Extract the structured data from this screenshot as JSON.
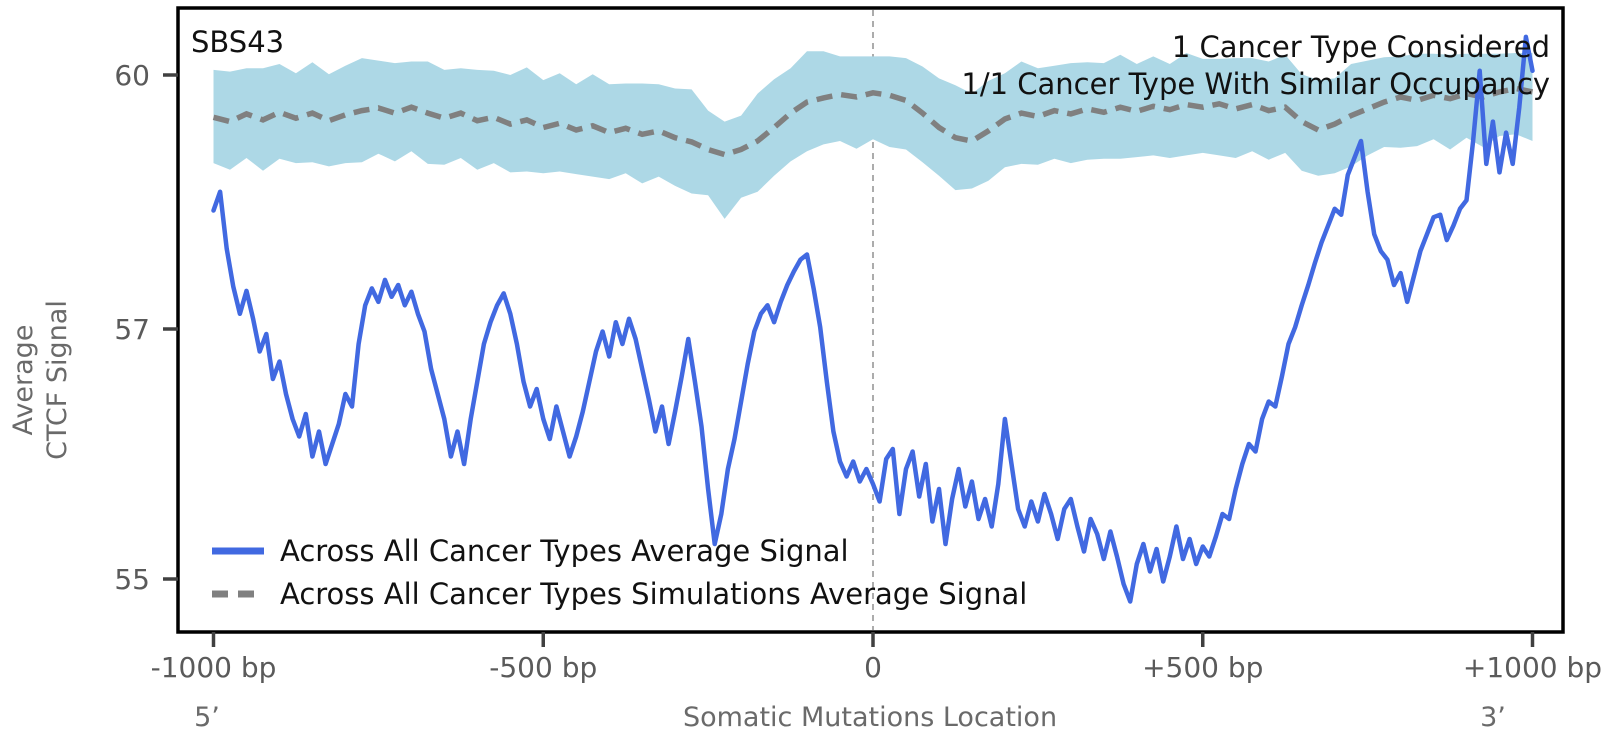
{
  "figure": {
    "title": "SBS43",
    "annotation_line1": "1 Cancer Type Considered",
    "annotation_line2": "1/1 Cancer Type With Similar Occupancy",
    "ylabel_line1": "Average",
    "ylabel_line2": "CTCF Signal",
    "xlabel": "Somatic Mutations Location",
    "five_prime": "5’",
    "three_prime": "3’"
  },
  "legend": {
    "avg_label": "Across All Cancer Types Average Signal",
    "sim_label": "Across All Cancer Types Simulations Average Signal"
  },
  "colors": {
    "avg_line": "#4169E1",
    "sim_line": "#808080",
    "sim_band": "#ADD8E6",
    "frame": "#000000",
    "tick_mark": "#404040",
    "tick_label": "#5a5a5a",
    "axis_label": "#6a6a6a",
    "annotation": "#111111",
    "vline": "#909090"
  },
  "chart_data": {
    "type": "line",
    "title": "SBS43",
    "xlabel": "Somatic Mutations Location",
    "ylabel": "Average CTCF Signal",
    "x_unit": "bp",
    "xlim": [
      -1000,
      1000
    ],
    "ylim": [
      54.6,
      60.8
    ],
    "grid": false,
    "legend_position": "lower left",
    "vline_x": 0,
    "x_ticks": [
      {
        "value": -1000,
        "label": "-1000 bp"
      },
      {
        "value": -500,
        "label": "-500 bp"
      },
      {
        "value": 0,
        "label": "0"
      },
      {
        "value": 500,
        "label": "+500 bp"
      },
      {
        "value": 1000,
        "label": "+1000 bp"
      }
    ],
    "y_ticks": [
      {
        "value": 55,
        "label": "55"
      },
      {
        "value": 57,
        "label": "57"
      },
      {
        "value": 60,
        "label": "60"
      }
    ],
    "series": [
      {
        "name": "Across All Cancer Types Average Signal",
        "color": "#4169E1",
        "style": "solid",
        "x": [
          -1000,
          -990,
          -980,
          -970,
          -960,
          -950,
          -940,
          -930,
          -920,
          -910,
          -900,
          -890,
          -880,
          -870,
          -860,
          -850,
          -840,
          -830,
          -820,
          -810,
          -800,
          -790,
          -780,
          -770,
          -760,
          -750,
          -740,
          -730,
          -720,
          -710,
          -700,
          -690,
          -680,
          -670,
          -660,
          -650,
          -640,
          -630,
          -620,
          -610,
          -600,
          -590,
          -580,
          -570,
          -560,
          -550,
          -540,
          -530,
          -520,
          -510,
          -500,
          -490,
          -480,
          -470,
          -460,
          -450,
          -440,
          -430,
          -420,
          -410,
          -400,
          -390,
          -380,
          -370,
          -360,
          -350,
          -340,
          -330,
          -320,
          -310,
          -300,
          -290,
          -280,
          -270,
          -260,
          -250,
          -240,
          -230,
          -220,
          -210,
          -200,
          -190,
          -180,
          -170,
          -160,
          -150,
          -140,
          -130,
          -120,
          -110,
          -100,
          -90,
          -80,
          -70,
          -60,
          -50,
          -40,
          -30,
          -20,
          -10,
          0,
          10,
          20,
          30,
          40,
          50,
          60,
          70,
          80,
          90,
          100,
          110,
          120,
          130,
          140,
          150,
          160,
          170,
          180,
          190,
          200,
          210,
          220,
          230,
          240,
          250,
          260,
          270,
          280,
          290,
          300,
          310,
          320,
          330,
          340,
          350,
          360,
          370,
          380,
          390,
          400,
          410,
          420,
          430,
          440,
          450,
          460,
          470,
          480,
          490,
          500,
          510,
          520,
          530,
          540,
          550,
          560,
          570,
          580,
          590,
          600,
          610,
          620,
          630,
          640,
          650,
          660,
          670,
          680,
          690,
          700,
          710,
          720,
          730,
          740,
          750,
          760,
          770,
          780,
          790,
          800,
          810,
          820,
          830,
          840,
          850,
          860,
          870,
          880,
          890,
          900,
          910,
          920,
          930,
          940,
          950,
          960,
          970,
          980,
          990,
          1000
        ],
        "y": [
          58.4,
          58.62,
          57.95,
          57.5,
          57.18,
          57.45,
          57.12,
          56.82,
          56.96,
          56.6,
          56.74,
          56.48,
          56.28,
          56.14,
          56.32,
          55.98,
          56.18,
          55.92,
          56.08,
          56.24,
          56.48,
          56.38,
          56.88,
          57.28,
          57.48,
          57.32,
          57.58,
          57.38,
          57.52,
          57.28,
          57.44,
          57.18,
          56.98,
          56.68,
          56.48,
          56.28,
          55.98,
          56.18,
          55.92,
          56.28,
          56.58,
          56.88,
          57.08,
          57.28,
          57.42,
          57.18,
          56.88,
          56.58,
          56.38,
          56.52,
          56.28,
          56.12,
          56.38,
          56.18,
          55.98,
          56.14,
          56.34,
          56.58,
          56.82,
          56.98,
          56.78,
          57.08,
          56.88,
          57.12,
          56.92,
          56.68,
          56.44,
          56.18,
          56.38,
          56.08,
          56.34,
          56.62,
          56.92,
          56.58,
          56.22,
          55.72,
          55.28,
          55.52,
          55.88,
          56.12,
          56.42,
          56.72,
          56.98,
          57.18,
          57.28,
          57.08,
          57.32,
          57.52,
          57.68,
          57.82,
          57.88,
          57.48,
          57.02,
          56.58,
          56.18,
          55.94,
          55.82,
          55.94,
          55.78,
          55.88,
          55.76,
          55.62,
          55.96,
          56.04,
          55.52,
          55.88,
          56.02,
          55.66,
          55.92,
          55.46,
          55.72,
          55.28,
          55.64,
          55.88,
          55.58,
          55.78,
          55.48,
          55.64,
          55.42,
          55.76,
          56.28,
          55.92,
          55.56,
          55.42,
          55.62,
          55.46,
          55.68,
          55.52,
          55.32,
          55.56,
          55.64,
          55.42,
          55.22,
          55.48,
          55.36,
          55.16,
          55.38,
          55.18,
          54.96,
          54.82,
          55.12,
          55.28,
          55.06,
          55.24,
          54.98,
          55.18,
          55.42,
          55.16,
          55.32,
          55.12,
          55.26,
          55.18,
          55.34,
          55.52,
          55.48,
          55.72,
          55.92,
          56.08,
          56.02,
          56.28,
          56.42,
          56.38,
          56.62,
          56.88,
          57.02,
          57.28,
          57.52,
          57.78,
          58.02,
          58.22,
          58.42,
          58.35,
          58.82,
          59.02,
          59.22,
          58.62,
          58.12,
          57.92,
          57.82,
          57.52,
          57.66,
          57.32,
          57.62,
          57.92,
          58.12,
          58.32,
          58.35,
          58.05,
          58.22,
          58.42,
          58.52,
          59.22,
          60.05,
          58.95,
          59.45,
          58.85,
          59.32,
          58.95,
          59.62,
          60.45,
          60.05
        ]
      },
      {
        "name": "Across All Cancer Types Simulations Average Signal",
        "color": "#808080",
        "style": "dashed",
        "x": [
          -1000,
          -975,
          -950,
          -925,
          -900,
          -875,
          -850,
          -825,
          -800,
          -775,
          -750,
          -725,
          -700,
          -675,
          -650,
          -625,
          -600,
          -575,
          -550,
          -525,
          -500,
          -475,
          -450,
          -425,
          -400,
          -375,
          -350,
          -325,
          -300,
          -275,
          -250,
          -225,
          -200,
          -175,
          -150,
          -125,
          -100,
          -75,
          -50,
          -25,
          0,
          25,
          50,
          75,
          100,
          125,
          150,
          175,
          200,
          225,
          250,
          275,
          300,
          325,
          350,
          375,
          400,
          425,
          450,
          475,
          500,
          525,
          550,
          575,
          600,
          625,
          650,
          675,
          700,
          725,
          750,
          775,
          800,
          825,
          850,
          875,
          900,
          925,
          950,
          975,
          1000
        ],
        "y": [
          59.5,
          59.45,
          59.54,
          59.47,
          59.56,
          59.49,
          59.55,
          59.46,
          59.53,
          59.58,
          59.61,
          59.55,
          59.62,
          59.55,
          59.49,
          59.55,
          59.46,
          59.5,
          59.42,
          59.47,
          59.38,
          59.43,
          59.35,
          59.4,
          59.32,
          59.37,
          59.3,
          59.34,
          59.26,
          59.21,
          59.12,
          59.06,
          59.12,
          59.22,
          59.38,
          59.55,
          59.68,
          59.73,
          59.77,
          59.74,
          59.79,
          59.76,
          59.7,
          59.55,
          59.38,
          59.26,
          59.22,
          59.34,
          59.48,
          59.55,
          59.51,
          59.58,
          59.54,
          59.6,
          59.56,
          59.62,
          59.57,
          59.63,
          59.59,
          59.65,
          59.62,
          59.66,
          59.6,
          59.65,
          59.58,
          59.62,
          59.45,
          59.35,
          59.42,
          59.52,
          59.6,
          59.68,
          59.74,
          59.7,
          59.76,
          59.72,
          59.78,
          59.74,
          59.8,
          59.84,
          59.8
        ],
        "band": {
          "color": "#ADD8E6",
          "upper": [
            60.06,
            60.04,
            60.08,
            60.08,
            60.13,
            60.02,
            60.15,
            60.01,
            60.11,
            60.2,
            60.17,
            60.14,
            60.16,
            60.16,
            60.06,
            60.08,
            60.06,
            60.05,
            60.0,
            60.09,
            59.94,
            60.02,
            59.89,
            60.01,
            59.89,
            59.9,
            59.9,
            59.89,
            59.84,
            59.83,
            59.58,
            59.45,
            59.52,
            59.78,
            59.95,
            60.08,
            60.28,
            60.28,
            60.22,
            60.22,
            60.22,
            60.22,
            60.2,
            60.1,
            59.96,
            59.88,
            59.78,
            59.93,
            60.02,
            60.16,
            60.08,
            60.11,
            60.14,
            60.15,
            60.14,
            60.24,
            60.13,
            60.22,
            60.13,
            60.26,
            60.19,
            60.19,
            60.2,
            60.2,
            60.16,
            60.24,
            60.01,
            59.94,
            59.96,
            60.13,
            60.17,
            60.21,
            60.22,
            60.25,
            60.25,
            60.24,
            60.25,
            60.25,
            60.25,
            60.26,
            60.26
          ],
          "lower": [
            58.96,
            58.88,
            59.02,
            58.87,
            59.01,
            58.96,
            58.97,
            58.92,
            58.96,
            58.97,
            59.07,
            58.98,
            59.1,
            58.95,
            58.94,
            59.02,
            58.88,
            58.96,
            58.85,
            58.86,
            58.84,
            58.86,
            58.83,
            58.8,
            58.77,
            58.84,
            58.72,
            58.8,
            58.69,
            58.6,
            58.58,
            58.3,
            58.55,
            58.62,
            58.81,
            58.98,
            59.1,
            59.18,
            59.22,
            59.13,
            59.24,
            59.15,
            59.12,
            58.97,
            58.81,
            58.64,
            58.66,
            58.75,
            58.91,
            58.95,
            58.94,
            59.01,
            58.96,
            59.0,
            59.01,
            59.01,
            59.03,
            59.05,
            59.02,
            59.05,
            59.08,
            59.05,
            59.02,
            59.1,
            59.0,
            59.08,
            58.87,
            58.81,
            58.84,
            58.92,
            59.05,
            59.15,
            59.14,
            59.16,
            59.24,
            59.12,
            59.26,
            59.15,
            59.28,
            59.3,
            59.22
          ]
        }
      }
    ]
  }
}
